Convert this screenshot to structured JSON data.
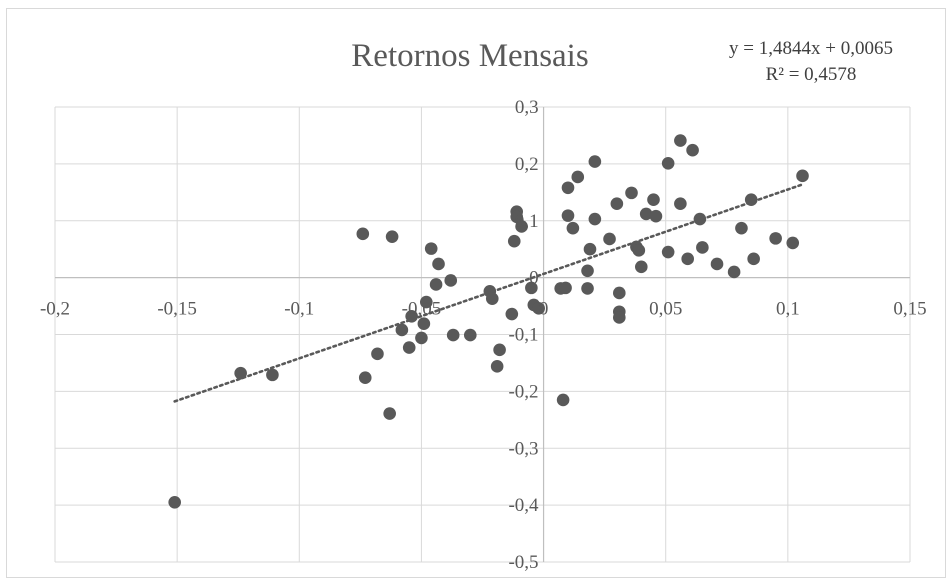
{
  "chart_data": {
    "type": "scatter",
    "title": "Retornos Mensais",
    "trendline": {
      "style": "dotted",
      "slope": 1.4844,
      "intercept": 0.0065,
      "equation_label": "y = 1,4844x + 0,0065",
      "r2_label": "R² = 0,4578",
      "x_range": [
        -0.151,
        0.106
      ]
    },
    "xlim": [
      -0.2,
      0.15
    ],
    "ylim": [
      -0.5,
      0.3
    ],
    "x_ticks": [
      -0.2,
      -0.15,
      -0.1,
      -0.05,
      0,
      0.05,
      0.1,
      0.15
    ],
    "x_tick_labels": [
      "-0,2",
      "-0,15",
      "-0,1",
      "-0,05",
      "0",
      "0,05",
      "0,1",
      "0,15"
    ],
    "y_ticks": [
      0.3,
      0.2,
      0.1,
      0,
      -0.1,
      -0.2,
      -0.3,
      -0.4,
      -0.5
    ],
    "y_tick_labels": [
      "0,3",
      "0,2",
      "0,1",
      "0",
      "-0,1",
      "-0,2",
      "-0,3",
      "-0,4",
      "-0,5"
    ],
    "grid": true,
    "legend": "none",
    "colors": {
      "points": "#595959",
      "trend": "#595959",
      "grid": "#d9d9d9",
      "axis": "#bfbfbf"
    },
    "points": [
      [
        -0.151,
        -0.395
      ],
      [
        -0.124,
        -0.168
      ],
      [
        -0.111,
        -0.171
      ],
      [
        -0.074,
        0.077
      ],
      [
        -0.073,
        -0.176
      ],
      [
        -0.068,
        -0.134
      ],
      [
        -0.063,
        -0.239
      ],
      [
        -0.062,
        0.072
      ],
      [
        -0.058,
        -0.092
      ],
      [
        -0.055,
        -0.123
      ],
      [
        -0.054,
        -0.068
      ],
      [
        -0.05,
        -0.106
      ],
      [
        -0.049,
        -0.081
      ],
      [
        -0.048,
        -0.043
      ],
      [
        -0.046,
        0.051
      ],
      [
        -0.044,
        -0.012
      ],
      [
        -0.043,
        0.024
      ],
      [
        -0.038,
        -0.005
      ],
      [
        -0.037,
        -0.101
      ],
      [
        -0.03,
        -0.101
      ],
      [
        -0.022,
        -0.024
      ],
      [
        -0.021,
        -0.037
      ],
      [
        -0.019,
        -0.156
      ],
      [
        -0.018,
        -0.127
      ],
      [
        -0.013,
        -0.064
      ],
      [
        -0.012,
        0.064
      ],
      [
        -0.011,
        0.116
      ],
      [
        -0.011,
        0.107
      ],
      [
        -0.009,
        0.09
      ],
      [
        -0.005,
        -0.018
      ],
      [
        -0.004,
        -0.048
      ],
      [
        -0.002,
        -0.054
      ],
      [
        0.007,
        -0.019
      ],
      [
        0.008,
        -0.215
      ],
      [
        0.009,
        -0.018
      ],
      [
        0.01,
        0.158
      ],
      [
        0.01,
        0.109
      ],
      [
        0.012,
        0.087
      ],
      [
        0.014,
        0.177
      ],
      [
        0.018,
        -0.019
      ],
      [
        0.018,
        0.012
      ],
      [
        0.019,
        0.05
      ],
      [
        0.021,
        0.103
      ],
      [
        0.021,
        0.204
      ],
      [
        0.027,
        0.068
      ],
      [
        0.03,
        0.13
      ],
      [
        0.031,
        -0.027
      ],
      [
        0.031,
        -0.06
      ],
      [
        0.031,
        -0.07
      ],
      [
        0.036,
        0.149
      ],
      [
        0.038,
        0.054
      ],
      [
        0.039,
        0.048
      ],
      [
        0.04,
        0.019
      ],
      [
        0.042,
        0.112
      ],
      [
        0.045,
        0.137
      ],
      [
        0.046,
        0.108
      ],
      [
        0.051,
        0.201
      ],
      [
        0.051,
        0.045
      ],
      [
        0.056,
        0.13
      ],
      [
        0.056,
        0.241
      ],
      [
        0.059,
        0.033
      ],
      [
        0.061,
        0.224
      ],
      [
        0.064,
        0.103
      ],
      [
        0.065,
        0.053
      ],
      [
        0.071,
        0.024
      ],
      [
        0.078,
        0.01
      ],
      [
        0.081,
        0.087
      ],
      [
        0.085,
        0.137
      ],
      [
        0.086,
        0.033
      ],
      [
        0.095,
        0.069
      ],
      [
        0.102,
        0.061
      ],
      [
        0.106,
        0.179
      ]
    ]
  }
}
